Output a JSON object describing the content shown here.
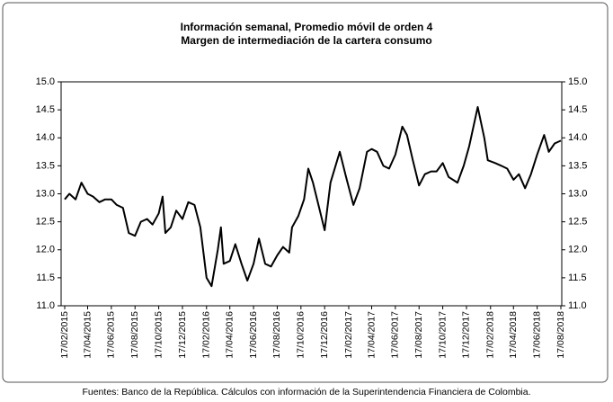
{
  "chart_data": {
    "type": "line",
    "title": "Información semanal, Promedio móvil de orden 4",
    "subtitle": "Margen de intermediación de la cartera consumo",
    "note": "Fuentes: Banco de la República. Cálculos con información de la Superintendencia Financiera de Colombia.",
    "x": [
      "17/02/2015",
      "01/03/2015",
      "17/03/2015",
      "01/04/2015",
      "17/04/2015",
      "01/05/2015",
      "17/05/2015",
      "01/06/2015",
      "17/06/2015",
      "01/07/2015",
      "17/07/2015",
      "01/08/2015",
      "17/08/2015",
      "01/09/2015",
      "17/09/2015",
      "01/10/2015",
      "17/10/2015",
      "27/10/2015",
      "03/11/2015",
      "17/11/2015",
      "01/12/2015",
      "17/12/2015",
      "01/01/2016",
      "17/01/2016",
      "01/02/2016",
      "17/02/2016",
      "01/03/2016",
      "17/03/2016",
      "25/03/2016",
      "01/04/2016",
      "17/04/2016",
      "01/05/2016",
      "17/05/2016",
      "01/06/2016",
      "17/06/2016",
      "01/07/2016",
      "17/07/2016",
      "01/08/2016",
      "17/08/2016",
      "01/09/2016",
      "17/09/2016",
      "24/09/2016",
      "10/10/2016",
      "25/10/2016",
      "05/11/2016",
      "17/11/2016",
      "01/12/2016",
      "17/12/2016",
      "01/01/2017",
      "25/01/2017",
      "10/02/2017",
      "01/03/2017",
      "17/03/2017",
      "05/04/2017",
      "17/04/2017",
      "01/05/2017",
      "17/05/2017",
      "01/06/2017",
      "17/06/2017",
      "05/07/2017",
      "17/07/2017",
      "01/08/2017",
      "17/08/2017",
      "01/09/2017",
      "17/09/2017",
      "01/10/2017",
      "17/10/2017",
      "01/11/2017",
      "24/11/2017",
      "10/12/2017",
      "24/12/2017",
      "15/01/2018",
      "01/02/2018",
      "10/02/2018",
      "01/03/2018",
      "17/03/2018",
      "01/04/2018",
      "17/04/2018",
      "01/05/2018",
      "17/05/2018",
      "01/06/2018",
      "17/06/2018",
      "05/07/2018",
      "17/07/2018",
      "01/08/2018",
      "17/08/2018"
    ],
    "series": [
      {
        "name": "Margen de intermediación",
        "color": "#000000",
        "values": [
          12.9,
          13.0,
          12.9,
          13.2,
          13.0,
          12.95,
          12.85,
          12.9,
          12.9,
          12.8,
          12.75,
          12.3,
          12.25,
          12.5,
          12.55,
          12.45,
          12.65,
          12.95,
          12.3,
          12.4,
          12.7,
          12.55,
          12.85,
          12.8,
          12.4,
          11.5,
          11.35,
          12.0,
          12.4,
          11.75,
          11.8,
          12.1,
          11.75,
          11.45,
          11.75,
          12.2,
          11.75,
          11.7,
          11.9,
          12.05,
          11.95,
          12.4,
          12.6,
          12.9,
          13.45,
          13.2,
          12.8,
          12.35,
          13.2,
          13.75,
          13.3,
          12.8,
          13.1,
          13.75,
          13.8,
          13.75,
          13.5,
          13.45,
          13.7,
          14.2,
          14.05,
          13.6,
          13.15,
          13.35,
          13.4,
          13.4,
          13.55,
          13.3,
          13.2,
          13.5,
          13.85,
          14.55,
          14.0,
          13.6,
          13.55,
          13.5,
          13.45,
          13.25,
          13.35,
          13.1,
          13.35,
          13.7,
          14.05,
          13.75,
          13.9,
          13.95
        ]
      }
    ],
    "xlim": [
      "17/02/2015",
      "17/08/2018"
    ],
    "xticks": [
      "17/02/2015",
      "17/04/2015",
      "17/06/2015",
      "17/08/2015",
      "17/10/2015",
      "17/12/2015",
      "17/02/2016",
      "17/04/2016",
      "17/06/2016",
      "17/08/2016",
      "17/10/2016",
      "17/12/2016",
      "17/02/2017",
      "17/04/2017",
      "17/06/2017",
      "17/08/2017",
      "17/10/2017",
      "17/12/2017",
      "17/02/2018",
      "17/04/2018",
      "17/06/2018",
      "17/08/2018"
    ],
    "ylim": [
      11,
      15
    ],
    "yticks": [
      {
        "value": 11,
        "label": "11.0"
      },
      {
        "value": 11.5,
        "label": "11.5"
      },
      {
        "value": 12,
        "label": "12.0"
      },
      {
        "value": 12.5,
        "label": "12.5"
      },
      {
        "value": 13,
        "label": "13.0"
      },
      {
        "value": 13.5,
        "label": "13.5"
      },
      {
        "value": 14,
        "label": "14.0"
      },
      {
        "value": 14.5,
        "label": "14.5"
      },
      {
        "value": 15,
        "label": "15.0"
      }
    ],
    "y2lim": [
      11,
      15
    ],
    "y2ticks": [
      {
        "value": 11,
        "label": "11.0"
      },
      {
        "value": 11.5,
        "label": "11.5"
      },
      {
        "value": 12,
        "label": "12.0"
      },
      {
        "value": 12.5,
        "label": "12.5"
      },
      {
        "value": 13,
        "label": "13.0"
      },
      {
        "value": 13.5,
        "label": "13.5"
      },
      {
        "value": 14,
        "label": "14.0"
      },
      {
        "value": 14.5,
        "label": "14.5"
      },
      {
        "value": 15,
        "label": "15.0"
      }
    ],
    "grid": false
  }
}
